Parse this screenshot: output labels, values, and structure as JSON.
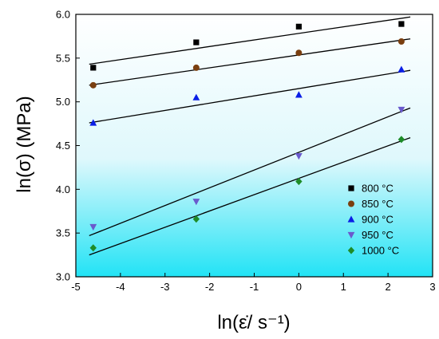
{
  "chart_data": {
    "type": "scatter",
    "xlabel": "ln(ε̇/ s⁻¹)",
    "ylabel": "ln(σ) (MPa)",
    "xlim": [
      -5,
      3
    ],
    "ylim": [
      3.0,
      6.0
    ],
    "xticks": [
      "-5",
      "-4",
      "-3",
      "-2",
      "-1",
      "0",
      "1",
      "2",
      "3"
    ],
    "yticks": [
      "3.0",
      "3.5",
      "4.0",
      "4.5",
      "5.0",
      "5.5",
      "6.0"
    ],
    "grid": false,
    "legend_position": "bottom-right",
    "background": "gradient white-to-cyan",
    "series": [
      {
        "name": "800 °C",
        "marker": "square",
        "color": "#000000",
        "x": [
          -4.61,
          -2.3,
          0.0,
          2.3
        ],
        "y": [
          5.39,
          5.68,
          5.86,
          5.89
        ],
        "fit": {
          "x": [
            -4.7,
            2.5
          ],
          "y": [
            5.43,
            5.97
          ]
        }
      },
      {
        "name": "850 °C",
        "marker": "circle",
        "color": "#7a3f10",
        "x": [
          -4.61,
          -2.3,
          0.0,
          2.3
        ],
        "y": [
          5.19,
          5.39,
          5.56,
          5.69
        ],
        "fit": {
          "x": [
            -4.7,
            2.5
          ],
          "y": [
            5.19,
            5.72
          ]
        }
      },
      {
        "name": "900 °C",
        "marker": "triangle-up",
        "color": "#0a1ee6",
        "x": [
          -4.61,
          -2.3,
          0.0,
          2.3
        ],
        "y": [
          4.76,
          5.05,
          5.08,
          5.37
        ],
        "fit": {
          "x": [
            -4.7,
            2.5
          ],
          "y": [
            4.76,
            5.36
          ]
        }
      },
      {
        "name": "950 °C",
        "marker": "triangle-down",
        "color": "#6a5acd",
        "x": [
          -4.61,
          -2.3,
          0.0,
          2.3
        ],
        "y": [
          3.57,
          3.86,
          4.38,
          4.91
        ],
        "fit": {
          "x": [
            -4.7,
            2.5
          ],
          "y": [
            3.47,
            4.93
          ]
        }
      },
      {
        "name": "1000 °C",
        "marker": "diamond",
        "color": "#1e8c28",
        "x": [
          -4.61,
          -2.3,
          0.0,
          2.3
        ],
        "y": [
          3.33,
          3.66,
          4.09,
          4.57
        ],
        "fit": {
          "x": [
            -4.7,
            2.5
          ],
          "y": [
            3.25,
            4.59
          ]
        }
      }
    ]
  }
}
